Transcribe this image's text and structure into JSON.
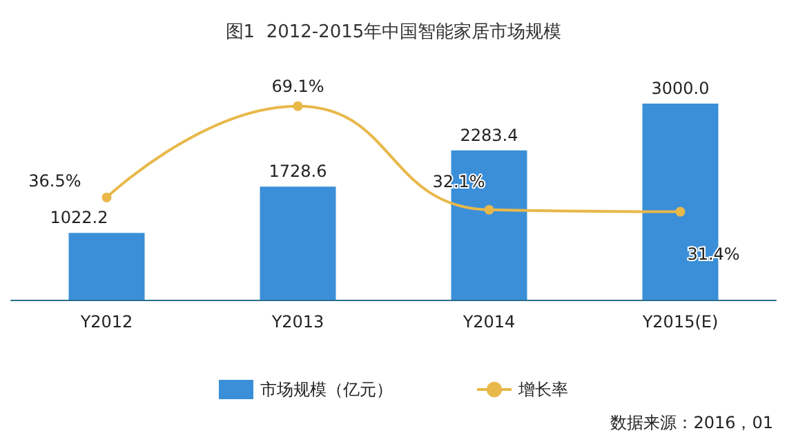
{
  "chart_data": {
    "type": "bar",
    "title": "图1  2012-2015年中国智能家居市场规模",
    "categories": [
      "Y2012",
      "Y2013",
      "Y2014",
      "Y2015(E)"
    ],
    "series": [
      {
        "name": "市场规模（亿元）",
        "color": "#3a8fd8",
        "values": [
          1022.2,
          1728.6,
          2283.4,
          3000.0
        ],
        "value_labels": [
          "1022.2",
          "1728.6",
          "2283.4",
          "3000.0"
        ]
      },
      {
        "name": "增长率",
        "type": "line",
        "axis": "y2",
        "color": "#e8b84a",
        "values": [
          36.5,
          69.1,
          32.1,
          31.4
        ],
        "value_labels": [
          "36.5%",
          "69.1%",
          "32.1%",
          "31.4%"
        ],
        "marker": "circle"
      }
    ],
    "grid": false,
    "legend": "bottom",
    "annotations": [
      "数据来源：2016，01"
    ]
  }
}
